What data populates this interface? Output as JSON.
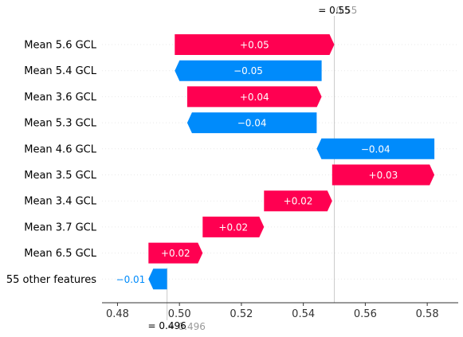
{
  "chart_data": {
    "type": "waterfall",
    "base_value": 0.496,
    "output_value": 0.55,
    "xlim": [
      0.475,
      0.59
    ],
    "xticks": [
      0.48,
      0.5,
      0.52,
      0.54,
      0.56,
      0.58
    ],
    "xtick_labels": [
      "0.48",
      "0.50",
      "0.52",
      "0.54",
      "0.56",
      "0.58"
    ],
    "top_label_main": "= 0.55",
    "top_label_ghost": "0.55",
    "bottom_label_main": "= 0.496",
    "bottom_label_ghost": "= 0.496",
    "features": [
      {
        "name": "Mean 5.6 GCL",
        "start": 0.4985,
        "end": 0.55,
        "label": "+0.05",
        "sign": "pos"
      },
      {
        "name": "Mean 5.4 GCL",
        "start": 0.5459,
        "end": 0.4985,
        "label": "−0.05",
        "sign": "neg"
      },
      {
        "name": "Mean 3.6 GCL",
        "start": 0.5025,
        "end": 0.5459,
        "label": "+0.04",
        "sign": "pos"
      },
      {
        "name": "Mean 5.3 GCL",
        "start": 0.5443,
        "end": 0.5025,
        "label": "−0.04",
        "sign": "neg"
      },
      {
        "name": "Mean 4.6 GCL",
        "start": 0.5823,
        "end": 0.5443,
        "label": "−0.04",
        "sign": "neg"
      },
      {
        "name": "Mean 3.5 GCL",
        "start": 0.5493,
        "end": 0.5823,
        "label": "+0.03",
        "sign": "pos"
      },
      {
        "name": "Mean 3.4 GCL",
        "start": 0.5273,
        "end": 0.5493,
        "label": "+0.02",
        "sign": "pos"
      },
      {
        "name": "Mean 3.7 GCL",
        "start": 0.5075,
        "end": 0.5273,
        "label": "+0.02",
        "sign": "pos"
      },
      {
        "name": "Mean 6.5 GCL",
        "start": 0.49,
        "end": 0.5075,
        "label": "+0.02",
        "sign": "pos"
      },
      {
        "name": "55 other features",
        "start": 0.496,
        "end": 0.49,
        "label": "−0.01",
        "sign": "neg"
      }
    ],
    "colors": {
      "positive": "#ff0051",
      "negative": "#008bfb",
      "base_line": "#cccccc",
      "ghost_text": "#999999"
    }
  }
}
